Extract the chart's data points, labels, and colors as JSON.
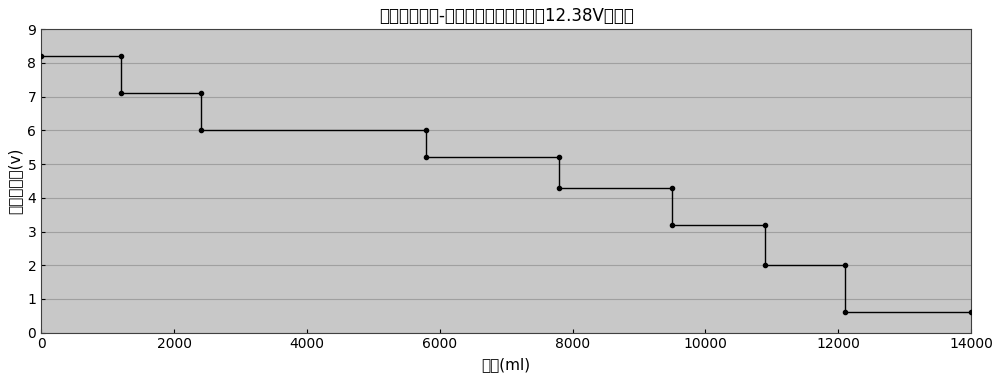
{
  "title": "油箱剩余油量-油感器电压对应关系（12.38V供电）",
  "xlabel": "油量(ml)",
  "ylabel": "油感器电压(v)",
  "xlim": [
    0,
    14000
  ],
  "ylim": [
    0,
    9
  ],
  "xticks": [
    0,
    2000,
    4000,
    6000,
    8000,
    10000,
    12000,
    14000
  ],
  "yticks": [
    0,
    1,
    2,
    3,
    4,
    5,
    6,
    7,
    8,
    9
  ],
  "background_color": "#c8c8c8",
  "grid_color": "#a0a0a0",
  "line_color": "#000000",
  "x_points": [
    0,
    1200,
    1200,
    2400,
    2400,
    5800,
    5800,
    7800,
    7800,
    9500,
    9500,
    10900,
    10900,
    12100,
    12100,
    14000
  ],
  "y_points": [
    8.2,
    8.2,
    7.1,
    7.1,
    6.0,
    6.0,
    5.2,
    5.2,
    4.3,
    4.3,
    3.2,
    3.2,
    2.0,
    2.0,
    0.6,
    0.6
  ],
  "marker_x": [
    0,
    1200,
    1200,
    2400,
    2400,
    5800,
    5800,
    7800,
    7800,
    9500,
    9500,
    10900,
    10900,
    12100,
    12100,
    14000
  ],
  "marker_y": [
    8.2,
    8.2,
    7.1,
    7.1,
    6.0,
    6.0,
    5.2,
    5.2,
    4.3,
    4.3,
    3.2,
    3.2,
    2.0,
    2.0,
    0.6,
    0.6
  ],
  "title_fontsize": 12,
  "axis_label_fontsize": 11,
  "tick_fontsize": 10,
  "figsize": [
    10.0,
    3.79
  ],
  "dpi": 100
}
